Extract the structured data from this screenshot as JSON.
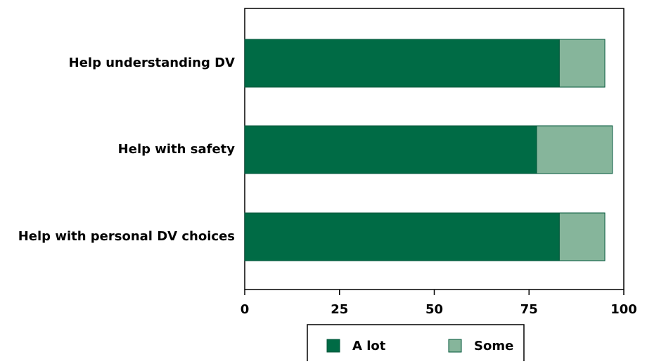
{
  "chart_data": {
    "type": "stacked-barh",
    "categories": [
      "Help understanding DV",
      "Help with safety",
      "Help with personal DV choices"
    ],
    "series": [
      {
        "name": "A lot",
        "color": "#006b45",
        "values": [
          83,
          77,
          83
        ]
      },
      {
        "name": "Some",
        "color": "#86b59b",
        "values": [
          12,
          20,
          12
        ]
      }
    ],
    "xlim": [
      0,
      100
    ],
    "xticks": [
      0,
      25,
      50,
      75,
      100
    ],
    "legend": "bottom"
  }
}
